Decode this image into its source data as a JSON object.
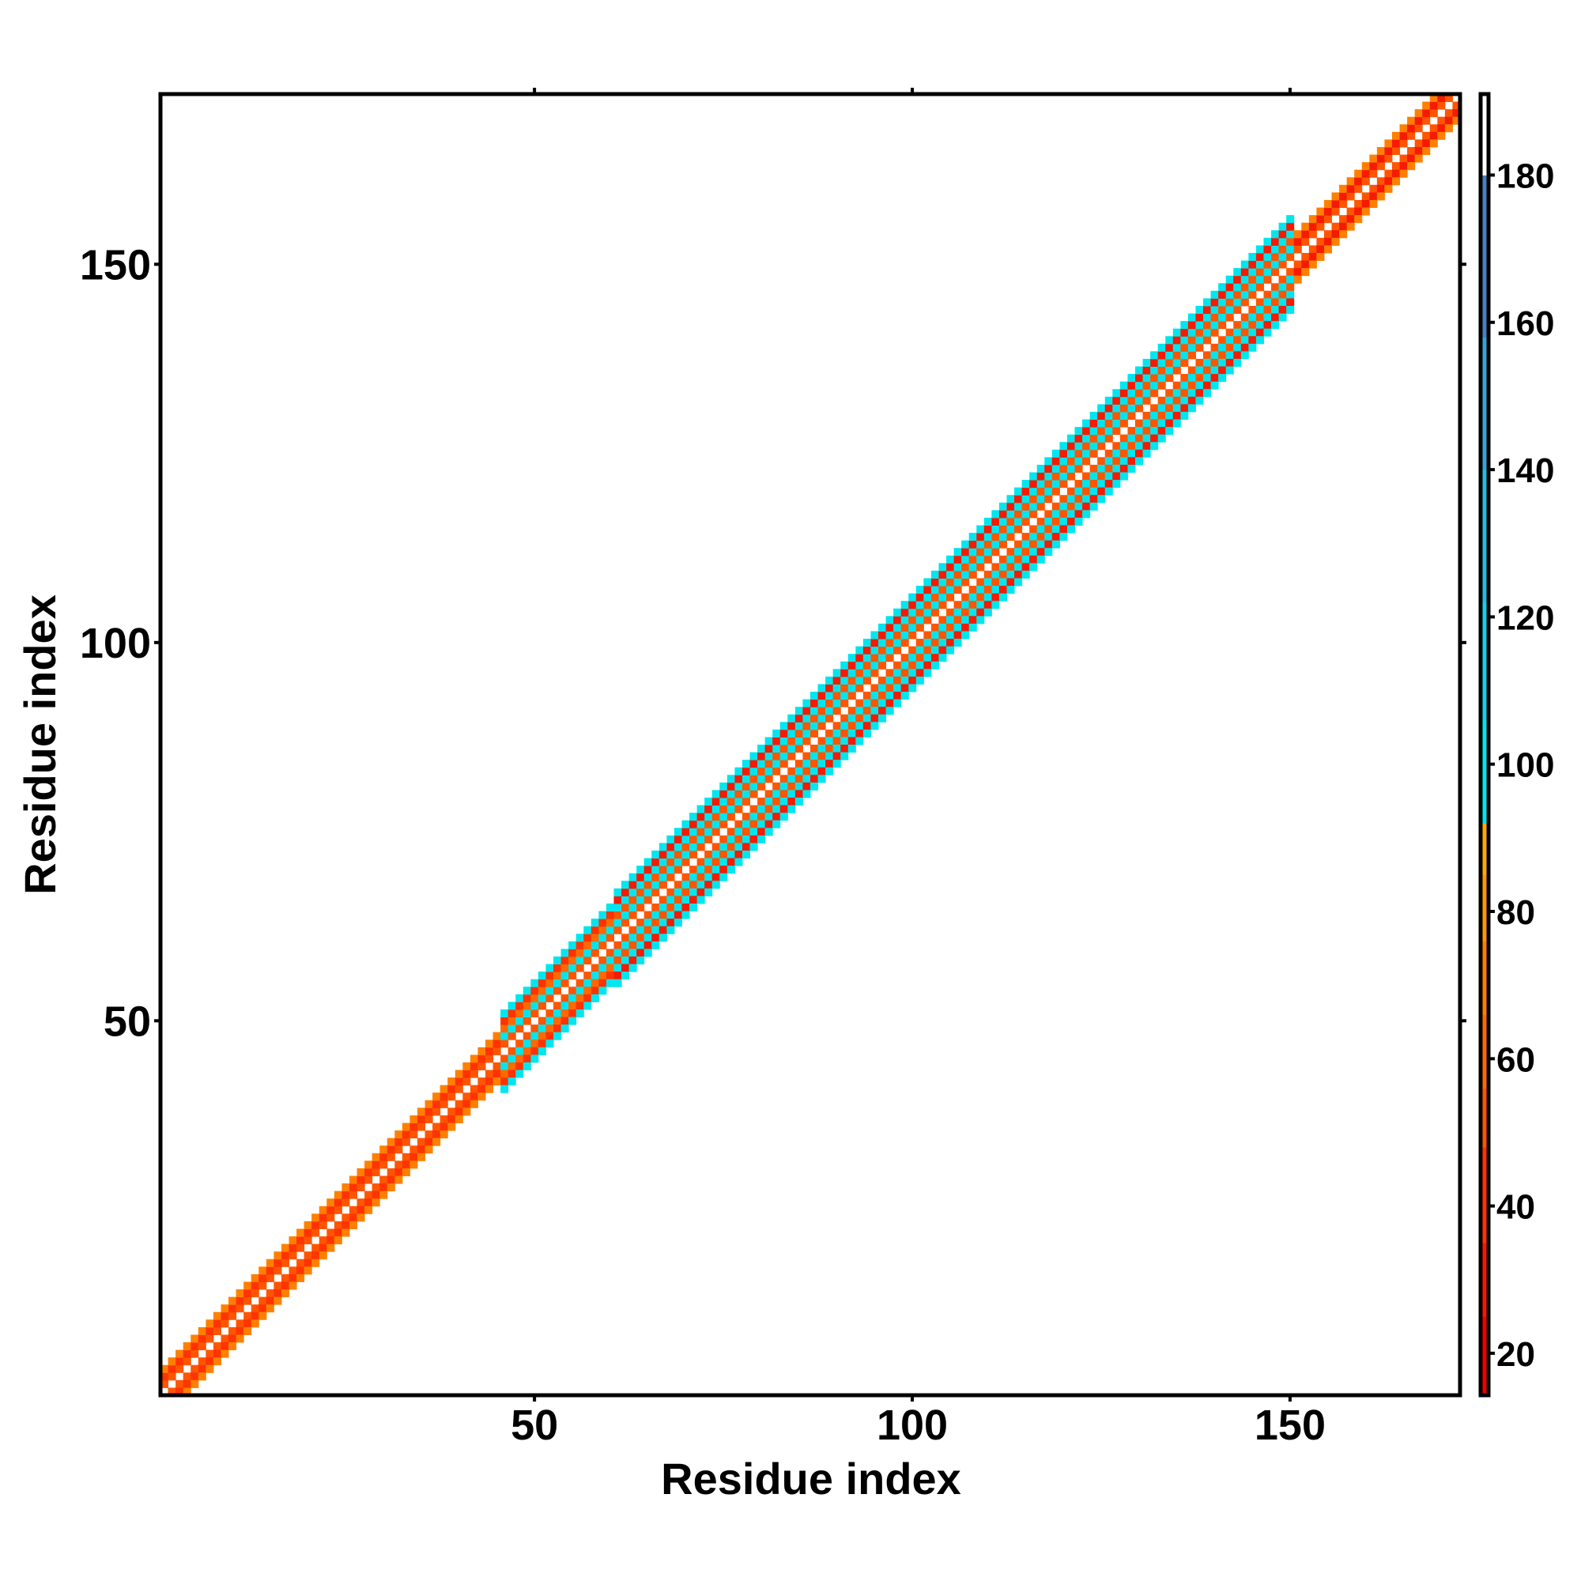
{
  "chart_data": {
    "type": "heatmap",
    "title": "",
    "xlabel": "Residue index",
    "ylabel": "Residue index",
    "xlim": [
      0.5,
      172.5
    ],
    "ylim": [
      0.5,
      172.5
    ],
    "n_residues": 172,
    "xticks": [
      50,
      100,
      150
    ],
    "yticks": [
      50,
      100,
      150
    ],
    "xtick_labels": [
      "50",
      "100",
      "150"
    ],
    "ytick_labels": [
      "50",
      "100",
      "150"
    ],
    "matrix_description": "symmetric banded matrix; value depends on diagonal offset |i-j|; diagonal empty",
    "band_segments": [
      {
        "from": 1,
        "to": 45,
        "offset_values": [
          null,
          55,
          35,
          75
        ]
      },
      {
        "from": 46,
        "to": 60,
        "offset_values": [
          null,
          55,
          100,
          60,
          35,
          100
        ]
      },
      {
        "from": 61,
        "to": 150,
        "offset_values": [
          null,
          55,
          100,
          55,
          100,
          30,
          100
        ]
      },
      {
        "from": 151,
        "to": 172,
        "offset_values": [
          null,
          55,
          30,
          75
        ]
      }
    ],
    "colorbar": {
      "range": [
        14.3,
        191
      ],
      "ticks": [
        20,
        40,
        60,
        80,
        100,
        120,
        140,
        160,
        180
      ],
      "tick_labels": [
        "20",
        "40",
        "60",
        "80",
        "100",
        "120",
        "140",
        "160",
        "180"
      ],
      "bins": [
        {
          "min": 14.3,
          "max": 25,
          "color": "#f00000"
        },
        {
          "min": 25,
          "max": 35,
          "color": "#f51a00"
        },
        {
          "min": 35,
          "max": 48,
          "color": "#ff3300"
        },
        {
          "min": 48,
          "max": 56,
          "color": "#ff5500"
        },
        {
          "min": 56,
          "max": 66,
          "color": "#ff6a00"
        },
        {
          "min": 66,
          "max": 76,
          "color": "#ff8000"
        },
        {
          "min": 76,
          "max": 85,
          "color": "#ff9900"
        },
        {
          "min": 85,
          "max": 92,
          "color": "#ffaa00"
        },
        {
          "min": 92,
          "max": 106,
          "color": "#00e6ee"
        },
        {
          "min": 106,
          "max": 122,
          "color": "#14d2e6"
        },
        {
          "min": 122,
          "max": 140,
          "color": "#26bcdc"
        },
        {
          "min": 140,
          "max": 158,
          "color": "#38a4d4"
        },
        {
          "min": 158,
          "max": 180,
          "color": "#4a80c0"
        },
        {
          "min": 180,
          "max": 191,
          "color": "#ffffff"
        }
      ]
    }
  }
}
